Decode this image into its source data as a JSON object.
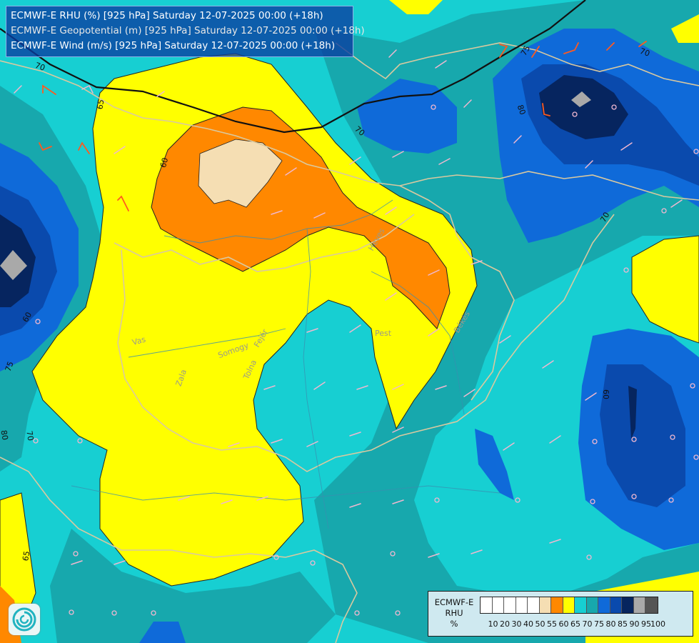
{
  "title": {
    "line1": "ECMWF-E RHU (%) [925 hPa] Saturday 12-07-2025 00:00 (+18h)",
    "line2": "ECMWF-E Geopotential (m) [925 hPa] Saturday 12-07-2025 00:00 (+18h)",
    "line3": "ECMWF-E Wind (m/s) [925 hPa] Saturday 12-07-2025 00:00 (+18h)"
  },
  "legend": {
    "label_line1": "ECMWF-E",
    "label_line2": "RHU",
    "label_line3": "%",
    "ticks": [
      "10",
      "20",
      "30",
      "40",
      "50",
      "55",
      "60",
      "65",
      "70",
      "75",
      "80",
      "85",
      "90",
      "95",
      "100"
    ],
    "colors": [
      "#ffffff",
      "#ffffff",
      "#ffffff",
      "#ffffff",
      "#ffffff",
      "#f5deb3",
      "#ff8800",
      "#ffff00",
      "#17cfd2",
      "#17a8ad",
      "#0f6ad9",
      "#0a4aad",
      "#06255f",
      "#a9a9a9",
      "#555555"
    ]
  },
  "contour_labels": [
    "60",
    "60",
    "60",
    "65",
    "65",
    "70",
    "70",
    "70",
    "70",
    "70",
    "75",
    "75",
    "80",
    "80"
  ],
  "place_labels": [
    "Vas",
    "Zala",
    "Somogy",
    "Tolna",
    "Fejér",
    "Pest",
    "Heves",
    "Békés"
  ],
  "colors": {
    "c55": "#f5deb3",
    "c60": "#ff8800",
    "c65": "#ffff00",
    "c70": "#17cfd2",
    "c75": "#17a8ad",
    "c80": "#0f6ad9",
    "c85": "#0a4aad",
    "c90": "#06255f",
    "c95": "#a9a9a9",
    "border": "#d9c9a0",
    "barb": "#f0b8d0",
    "barb_orange": "#ff5a1f"
  },
  "logo_icon": "ecmwf-swirl-icon"
}
